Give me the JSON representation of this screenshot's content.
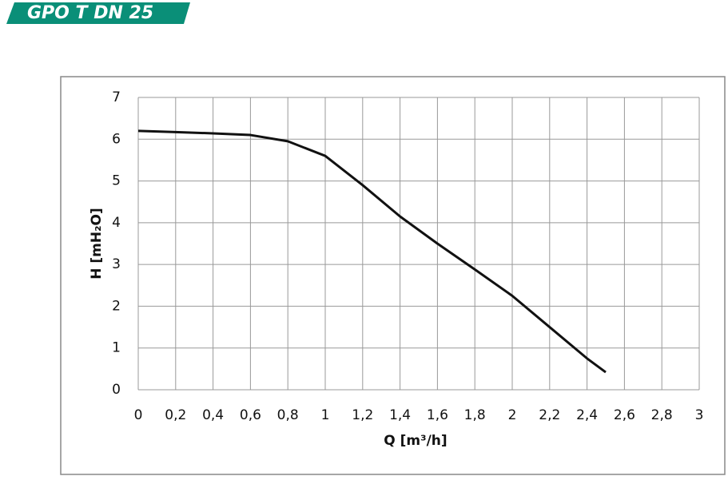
{
  "chart_data": {
    "type": "line",
    "banner": "GPO T DN 25",
    "xlabel": "Q [m³/h]",
    "ylabel": "H [mH₂O]",
    "x": [
      0,
      0.2,
      0.4,
      0.6,
      0.8,
      1.0,
      1.2,
      1.4,
      1.6,
      1.8,
      2.0,
      2.2,
      2.4,
      2.5
    ],
    "series": [
      {
        "color": "#111111",
        "values": [
          6.2,
          6.17,
          6.14,
          6.1,
          5.95,
          5.6,
          4.9,
          4.15,
          3.5,
          2.88,
          2.25,
          1.5,
          0.75,
          0.42
        ]
      }
    ],
    "xlim": [
      0,
      3
    ],
    "ylim": [
      0,
      7
    ],
    "xticks": [
      0,
      {
        "value": 0.2,
        "label": "0,2"
      },
      {
        "value": 0.4,
        "label": "0,4"
      },
      {
        "value": 0.6,
        "label": "0,6"
      },
      {
        "value": 0.8,
        "label": "0,8"
      },
      1,
      {
        "value": 1.2,
        "label": "1,2"
      },
      {
        "value": 1.4,
        "label": "1,4"
      },
      {
        "value": 1.6,
        "label": "1,6"
      },
      {
        "value": 1.8,
        "label": "1,8"
      },
      2,
      {
        "value": 2.2,
        "label": "2,2"
      },
      {
        "value": 2.4,
        "label": "2,4"
      },
      {
        "value": 2.6,
        "label": "2,6"
      },
      {
        "value": 2.8,
        "label": "2,8"
      },
      3
    ],
    "yticks": [
      0,
      1,
      2,
      3,
      4,
      5,
      6,
      7
    ],
    "grid": true
  }
}
